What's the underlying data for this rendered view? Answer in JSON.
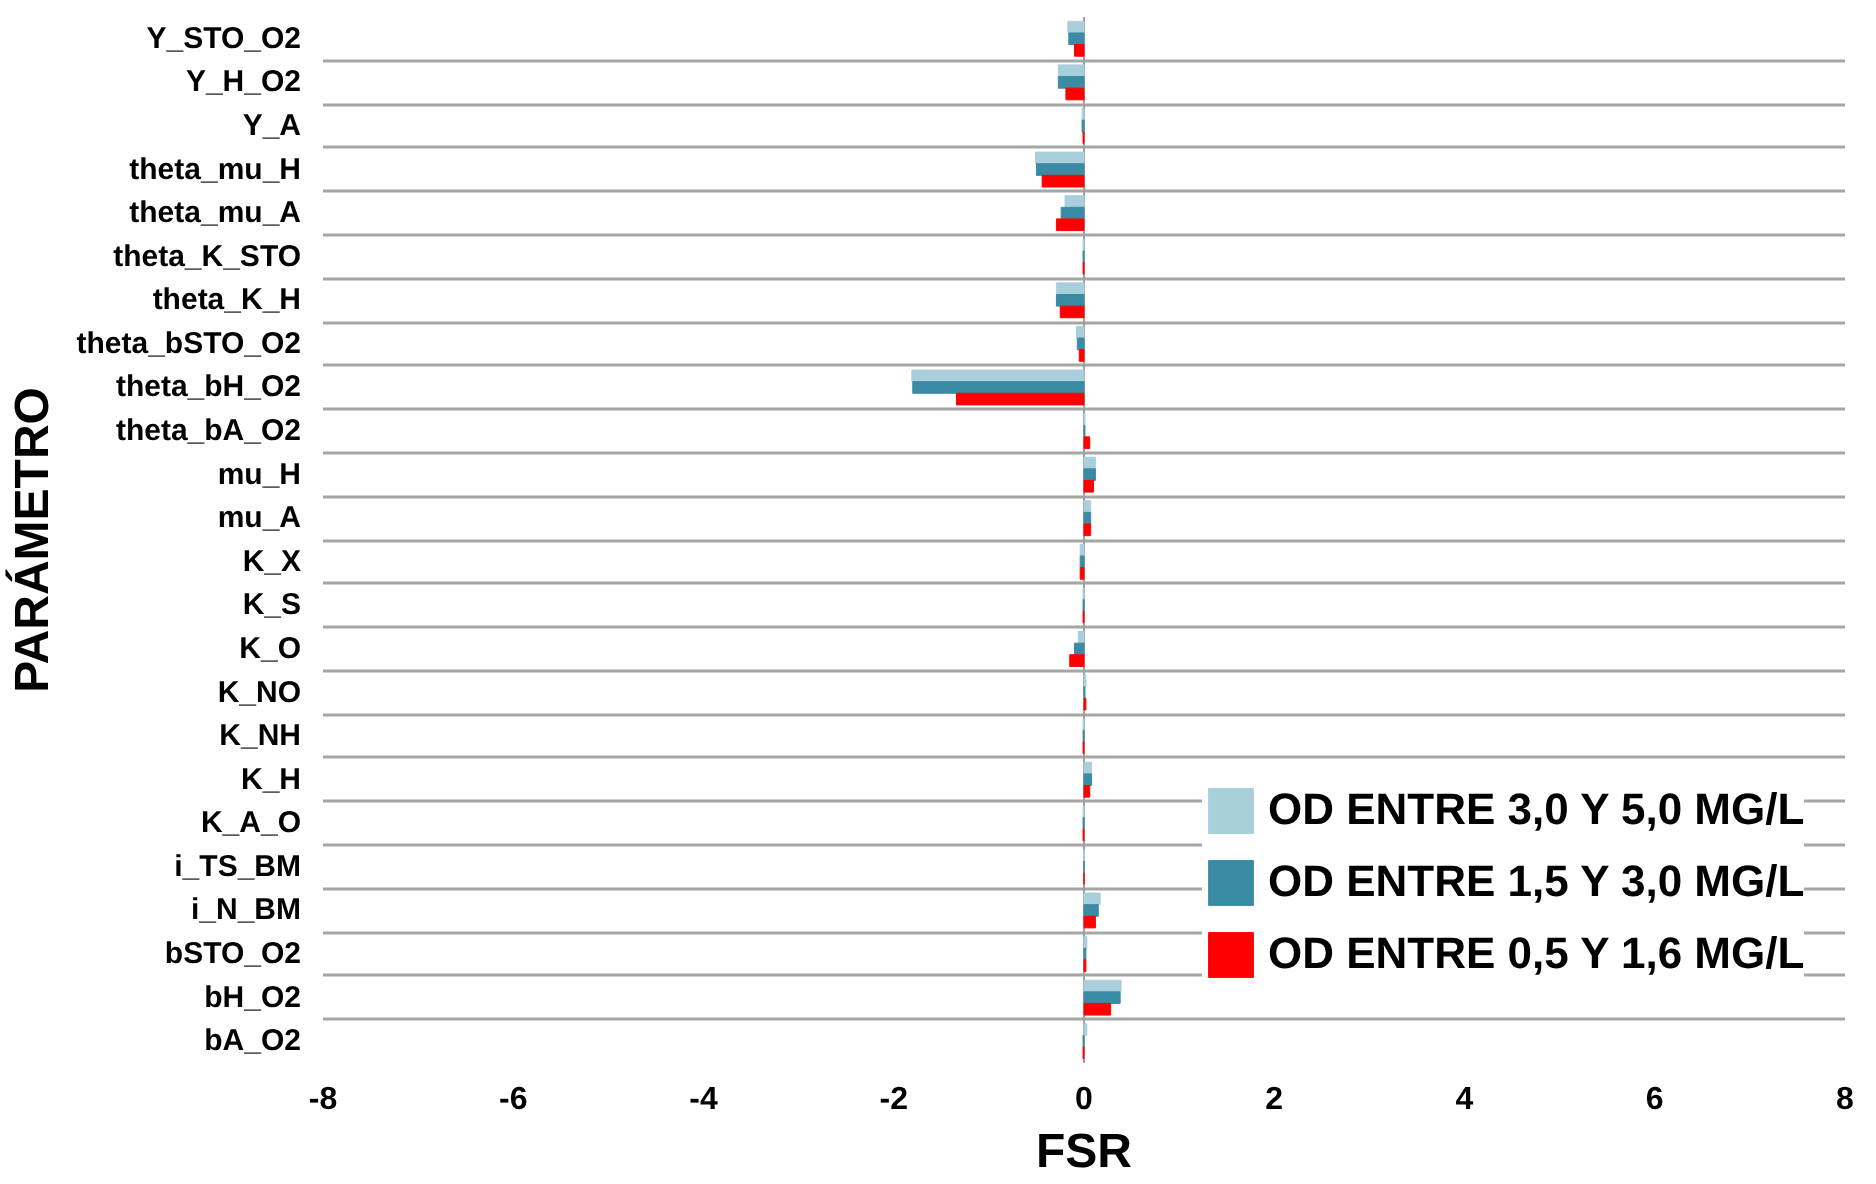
{
  "chart_data": {
    "type": "bar",
    "orientation": "horizontal",
    "xlabel": "FSR",
    "ylabel": "PARÁMETRO",
    "categories": [
      "Y_STO_O2",
      "Y_H_O2",
      "Y_A",
      "theta_mu_H",
      "theta_mu_A",
      "theta_K_STO",
      "theta_K_H",
      "theta_bSTO_O2",
      "theta_bH_O2",
      "theta_bA_O2",
      "mu_H",
      "mu_A",
      "K_X",
      "K_S",
      "K_O",
      "K_NO",
      "K_NH",
      "K_H",
      "K_A_O",
      "i_TS_BM",
      "i_N_BM",
      "bSTO_O2",
      "bH_O2",
      "bA_O2"
    ],
    "xlim": [
      -8,
      8
    ],
    "xticks": [
      -8,
      -6,
      -4,
      -2,
      0,
      2,
      4,
      6,
      8
    ],
    "grid": "y",
    "legend": "bottom right",
    "series": [
      {
        "name": "OD ENTRE 3,0 Y 5,0 MG/L",
        "color": "#a9cfdc",
        "values": [
          -0.17,
          -0.27,
          -0.02,
          -0.51,
          -0.2,
          -0.01,
          -0.29,
          -0.08,
          -1.81,
          0.01,
          0.12,
          0.07,
          -0.04,
          -0.01,
          -0.06,
          0.02,
          -0.01,
          0.08,
          -0.01,
          0,
          0.17,
          0.03,
          0.39,
          0.03
        ]
      },
      {
        "name": "OD ENTRE 1,5 Y 3,0 MG/L",
        "color": "#3a8ba3",
        "values": [
          -0.16,
          -0.27,
          -0.02,
          -0.5,
          -0.24,
          -0.01,
          -0.29,
          -0.07,
          -1.8,
          0.01,
          0.12,
          0.07,
          -0.04,
          -0.01,
          -0.1,
          0.01,
          -0.01,
          0.08,
          -0.01,
          0,
          0.15,
          0.02,
          0.38,
          -0.01
        ]
      },
      {
        "name": "OD ENTRE 0,5 Y 1,6 MG/L",
        "color": "#ff0000",
        "values": [
          -0.1,
          -0.19,
          -0.01,
          -0.44,
          -0.29,
          -0.01,
          -0.25,
          -0.05,
          -1.34,
          0.06,
          0.1,
          0.07,
          -0.04,
          -0.01,
          -0.15,
          0.02,
          -0.01,
          0.06,
          -0.01,
          0,
          0.12,
          0.02,
          0.28,
          -0.01
        ]
      }
    ]
  }
}
